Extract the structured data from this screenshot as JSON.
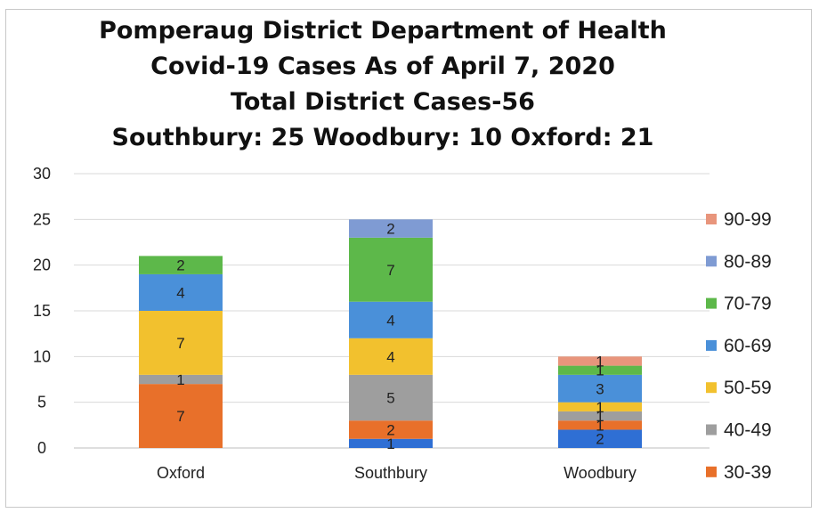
{
  "chart_data": {
    "type": "bar",
    "stacked": true,
    "title_lines": [
      "Pomperaug District Department of Health",
      "Covid-19 Cases As of April 7, 2020",
      "Total District Cases-56",
      "Southbury: 25 Woodbury: 10 Oxford: 21"
    ],
    "xlabel": "",
    "ylabel": "",
    "ylim": [
      0,
      30
    ],
    "yticks": [
      0,
      5,
      10,
      15,
      20,
      25,
      30
    ],
    "grid": true,
    "legend_position": "right",
    "categories": [
      "Oxford",
      "Southbury",
      "Woodbury"
    ],
    "series": [
      {
        "name": "30-39",
        "color": "#E8702A",
        "values": [
          7,
          2,
          1
        ]
      },
      {
        "name": "40-49",
        "color": "#9E9E9E",
        "values": [
          1,
          5,
          1
        ]
      },
      {
        "name": "50-59",
        "color": "#F2C12E",
        "values": [
          7,
          4,
          1
        ]
      },
      {
        "name": "60-69",
        "color": "#4A90D9",
        "values": [
          4,
          4,
          3
        ]
      },
      {
        "name": "70-79",
        "color": "#5DB84A",
        "values": [
          2,
          7,
          1
        ]
      },
      {
        "name": "80-89",
        "color": "#7F9BD3",
        "values": [
          0,
          2,
          0
        ]
      },
      {
        "name": "90-99",
        "color": "#E8957C",
        "values": [
          0,
          0,
          1
        ]
      }
    ],
    "base_segment": {
      "color": "#2F6FD4",
      "values": [
        0,
        1,
        2
      ]
    },
    "base_segment_label_values": [
      null,
      1,
      2
    ]
  }
}
